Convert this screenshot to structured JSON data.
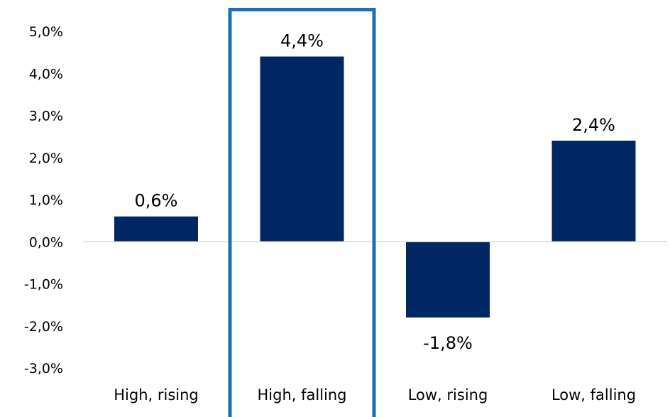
{
  "chart_data": {
    "type": "bar",
    "title": "",
    "xlabel": "",
    "ylabel": "",
    "categories": [
      "High, rising",
      "High, falling",
      "Low, rising",
      "Low, falling"
    ],
    "values": [
      0.6,
      4.4,
      -1.8,
      2.4
    ],
    "data_labels": [
      "0,6%",
      "4,4%",
      "-1,8%",
      "2,4%"
    ],
    "ylim": [
      -3.0,
      5.0
    ],
    "y_ticks": [
      5.0,
      4.0,
      3.0,
      2.0,
      1.0,
      0.0,
      -1.0,
      -2.0,
      -3.0
    ],
    "y_tick_labels": [
      "5,0%",
      "4,0%",
      "3,0%",
      "2,0%",
      "1,0%",
      "0,0%",
      "-1,0%",
      "-2,0%",
      "-3,0%"
    ],
    "grid": false,
    "legend": "none",
    "highlighted_category": "High, falling",
    "colors": {
      "bar": "#002664",
      "highlight_frame": "#1f6fb5",
      "axis": "#d9d9d9"
    }
  }
}
